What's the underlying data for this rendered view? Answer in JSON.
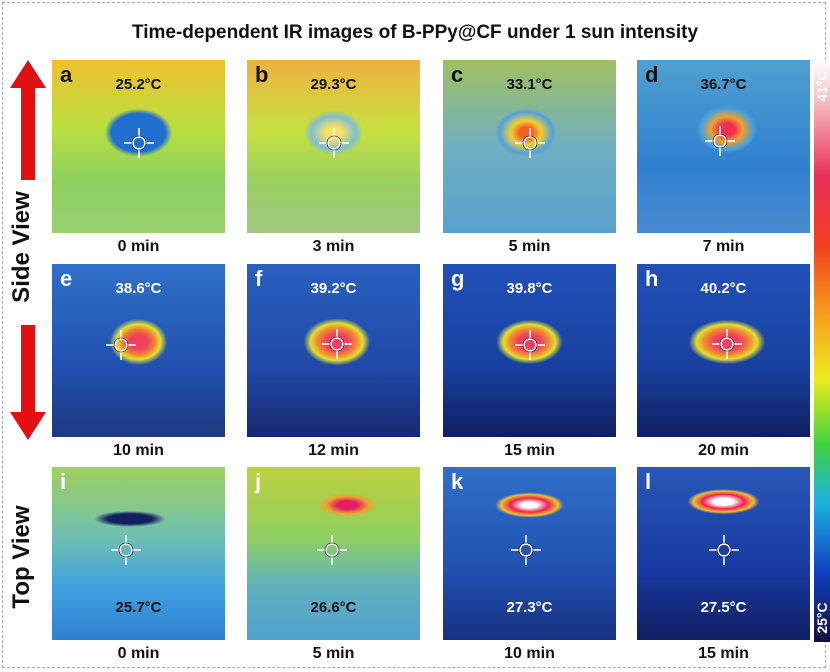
{
  "title": "Time-dependent IR images of B-PPy@CF under 1 sun intensity",
  "side_labels": {
    "side_view": "Side View",
    "top_view": "Top View"
  },
  "colorbar": {
    "max_label": "41°C",
    "min_label": "25°C"
  },
  "panels": [
    {
      "letter": "a",
      "temperature": "25.2°C",
      "time": "0 min"
    },
    {
      "letter": "b",
      "temperature": "29.3°C",
      "time": "3 min"
    },
    {
      "letter": "c",
      "temperature": "33.1°C",
      "time": "5 min"
    },
    {
      "letter": "d",
      "temperature": "36.7°C",
      "time": "7 min"
    },
    {
      "letter": "e",
      "temperature": "38.6°C",
      "time": "10 min"
    },
    {
      "letter": "f",
      "temperature": "39.2°C",
      "time": "12 min"
    },
    {
      "letter": "g",
      "temperature": "39.8°C",
      "time": "15 min"
    },
    {
      "letter": "h",
      "temperature": "40.2°C",
      "time": "20 min"
    },
    {
      "letter": "i",
      "temperature": "25.7°C",
      "time": "0 min"
    },
    {
      "letter": "j",
      "temperature": "26.6°C",
      "time": "5 min"
    },
    {
      "letter": "k",
      "temperature": "27.3°C",
      "time": "10 min"
    },
    {
      "letter": "l",
      "temperature": "27.5°C",
      "time": "15 min"
    }
  ]
}
